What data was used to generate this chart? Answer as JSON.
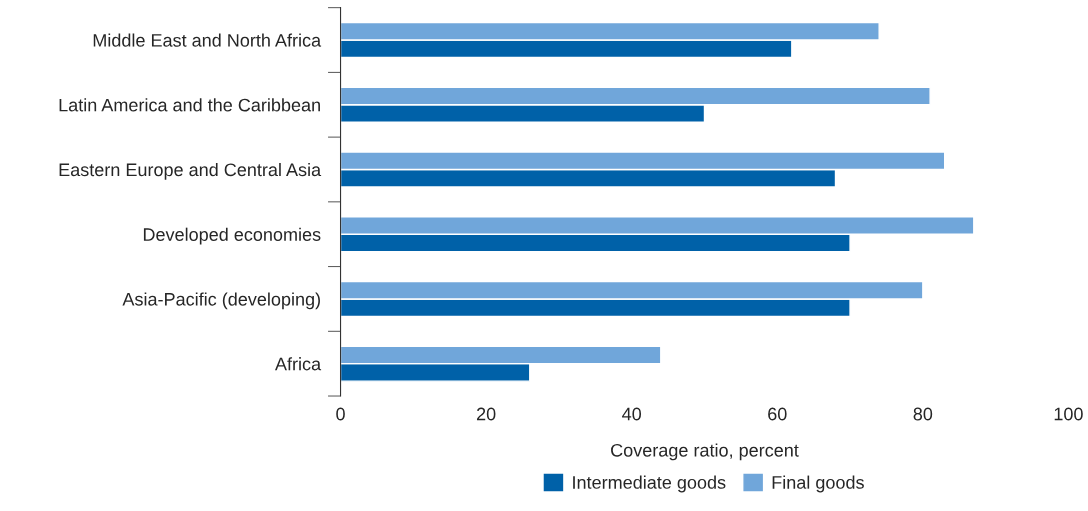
{
  "chart_data": {
    "type": "bar",
    "orientation": "horizontal",
    "categories": [
      "Middle East and North Africa",
      "Latin America and the Caribbean",
      "Eastern Europe and Central Asia",
      "Developed economies",
      "Asia-Pacific (developing)",
      "Africa"
    ],
    "series": [
      {
        "name": "Intermediate goods",
        "color": "#0061a8",
        "values": [
          62,
          50,
          68,
          70,
          70,
          26
        ]
      },
      {
        "name": "Final goods",
        "color": "#70a6da",
        "values": [
          74,
          81,
          83,
          87,
          80,
          44
        ]
      }
    ],
    "xlabel": "Coverage ratio, percent",
    "xlim": [
      0,
      100
    ],
    "xticks": [
      0,
      20,
      40,
      60,
      80,
      100
    ],
    "grid": false,
    "legend": "bottom"
  }
}
